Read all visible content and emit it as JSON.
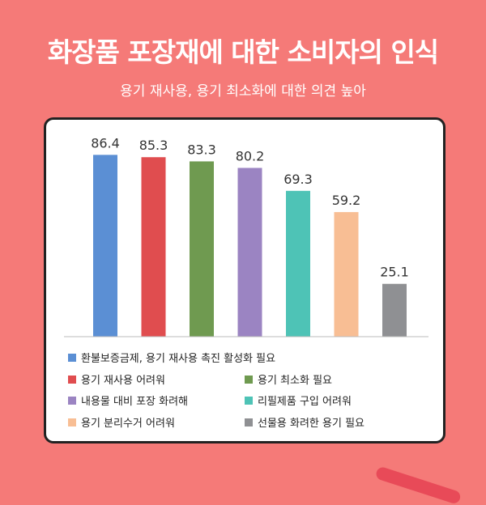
{
  "header": {
    "title": "화장품 포장재에 대한 소비자의 인식",
    "subtitle": "용기 재사용, 용기 최소화에 대한 의견 높아"
  },
  "chart_data": {
    "type": "bar",
    "categories": [
      "환불보증금제, 용기 재사용 촉진 활성화 필요",
      "용기 재사용 어려워",
      "용기 최소화 필요",
      "내용물 대비 포장 화려해",
      "리필제품 구입 어려워",
      "용기 분리수거 어려워",
      "선물용 화려한 용기 필요"
    ],
    "values": [
      86.4,
      85.3,
      83.3,
      80.2,
      69.3,
      59.2,
      25.1
    ],
    "value_labels": [
      "86.4",
      "85.3",
      "83.3",
      "80.2",
      "69.3",
      "59.2",
      "25.1"
    ],
    "colors": [
      "#5B8FD4",
      "#E04D4F",
      "#6F9A50",
      "#9B84C2",
      "#4EC3B6",
      "#F8BE94",
      "#8F9093"
    ],
    "ylim": [
      0,
      100
    ],
    "legend_position": "bottom",
    "grid": false
  }
}
